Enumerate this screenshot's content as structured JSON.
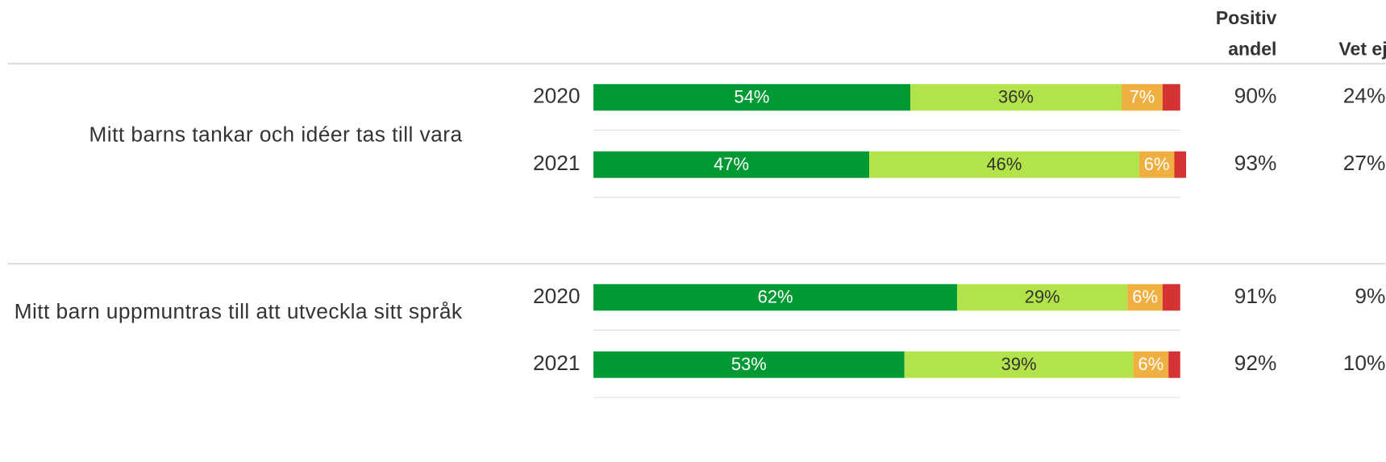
{
  "chart_data": {
    "type": "bar",
    "orientation": "horizontal",
    "stacked": true,
    "xlim": [
      0,
      100
    ],
    "colors": [
      "#009933",
      "#b3e34b",
      "#f0b041",
      "#d33333"
    ],
    "label_colors": [
      "#ffffff",
      "#333333",
      "#ffffff",
      "#ffffff"
    ],
    "header_positive": [
      "Positiv",
      "andel"
    ],
    "header_dont_know": "Vet ej",
    "groups": [
      {
        "question": "Mitt barns tankar och idéer tas till vara",
        "rows": [
          {
            "year": "2020",
            "values": [
              54,
              36,
              7,
              3
            ],
            "value_labels": [
              "54%",
              "36%",
              "7%",
              null
            ],
            "positive": "90%",
            "dont_know": "24%"
          },
          {
            "year": "2021",
            "values": [
              47,
              46,
              6,
              2
            ],
            "value_labels": [
              "47%",
              "46%",
              "6%",
              null
            ],
            "positive": "93%",
            "dont_know": "27%"
          }
        ]
      },
      {
        "question": "Mitt barn uppmuntras till att utveckla sitt språk",
        "rows": [
          {
            "year": "2020",
            "values": [
              62,
              29,
              6,
              3
            ],
            "value_labels": [
              "62%",
              "29%",
              "6%",
              null
            ],
            "positive": "91%",
            "dont_know": "9%"
          },
          {
            "year": "2021",
            "values": [
              53,
              39,
              6,
              2
            ],
            "value_labels": [
              "53%",
              "39%",
              "6%",
              null
            ],
            "positive": "92%",
            "dont_know": "10%"
          }
        ]
      }
    ]
  }
}
